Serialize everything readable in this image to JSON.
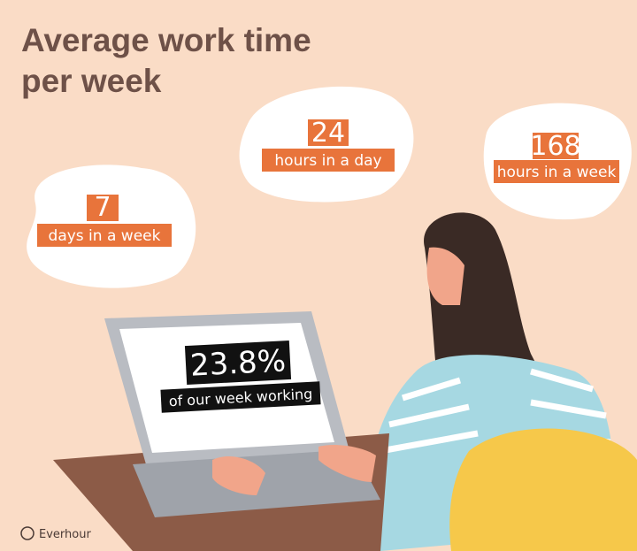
{
  "title": {
    "line1": "Average work time",
    "line2": "per week"
  },
  "bubbles": [
    {
      "number": "7",
      "label": "days in a week"
    },
    {
      "number": "24",
      "label": "hours in a day"
    },
    {
      "number": "168",
      "label": "hours in a week"
    }
  ],
  "screen": {
    "number": "23.8%",
    "label": "of our week working"
  },
  "brand": "Everhour"
}
